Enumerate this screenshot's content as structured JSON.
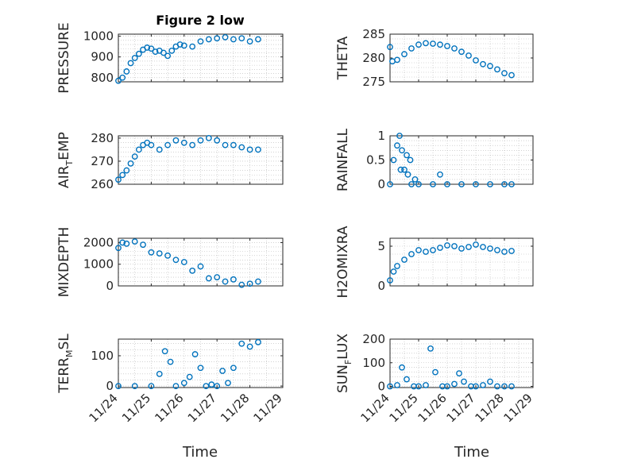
{
  "figure": {
    "title": "Figure 2 low",
    "xlabel": "Time"
  },
  "colors": {
    "marker": "#0072BD",
    "axis": "#262626",
    "grid": "#b8b8b8"
  },
  "chart_data": [
    {
      "id": "pressure",
      "type": "scatter",
      "ylabel_main": "PRESSURE",
      "ylabel_sub": "",
      "ylabel_tail": "",
      "ylim": [
        780,
        1010
      ],
      "yticks": [
        800,
        900,
        1000
      ],
      "yticklabels": [
        "800",
        "900",
        "1000"
      ],
      "xlim": [
        "11/24",
        "11/29"
      ],
      "xticklabels": [],
      "x": [
        "11/24 00:00",
        "11/24 03:00",
        "11/24 06:00",
        "11/24 09:00",
        "11/24 12:00",
        "11/24 15:00",
        "11/24 18:00",
        "11/24 21:00",
        "11/25 00:00",
        "11/25 03:00",
        "11/25 06:00",
        "11/25 09:00",
        "11/25 12:00",
        "11/25 15:00",
        "11/25 18:00",
        "11/25 21:00",
        "11/26 00:00",
        "11/26 06:00",
        "11/26 12:00",
        "11/26 18:00",
        "11/27 00:00",
        "11/27 06:00",
        "11/27 12:00",
        "11/27 18:00",
        "11/28 00:00",
        "11/28 06:00"
      ],
      "y": [
        785,
        800,
        830,
        870,
        895,
        915,
        935,
        945,
        940,
        925,
        930,
        920,
        905,
        930,
        950,
        960,
        955,
        950,
        975,
        985,
        990,
        995,
        985,
        990,
        975,
        985
      ]
    },
    {
      "id": "theta",
      "type": "scatter",
      "ylabel_main": "THETA",
      "ylabel_sub": "",
      "ylabel_tail": "",
      "ylim": [
        275,
        285
      ],
      "yticks": [
        275,
        280,
        285
      ],
      "yticklabels": [
        "275",
        "280",
        "285"
      ],
      "xlim": [
        "11/24",
        "11/29"
      ],
      "xticklabels": [],
      "x": [
        "11/24 00:00",
        "11/24 02:00",
        "11/24 06:00",
        "11/24 12:00",
        "11/24 18:00",
        "11/25 00:00",
        "11/25 06:00",
        "11/25 12:00",
        "11/25 18:00",
        "11/26 00:00",
        "11/26 06:00",
        "11/26 12:00",
        "11/26 18:00",
        "11/27 00:00",
        "11/27 06:00",
        "11/27 12:00",
        "11/27 18:00",
        "11/28 00:00",
        "11/28 06:00"
      ],
      "y": [
        282.3,
        279.3,
        279.6,
        280.8,
        282.0,
        282.8,
        283.1,
        283.0,
        282.8,
        282.5,
        282.0,
        281.3,
        280.5,
        279.5,
        278.7,
        278.3,
        277.6,
        276.8,
        276.4
      ]
    },
    {
      "id": "air_temp",
      "type": "scatter",
      "ylabel_main": "AIR",
      "ylabel_sub": "T",
      "ylabel_tail": "EMP",
      "ylim": [
        260,
        281
      ],
      "yticks": [
        260,
        270,
        280
      ],
      "yticklabels": [
        "260",
        "270",
        "280"
      ],
      "xlim": [
        "11/24",
        "11/29"
      ],
      "xticklabels": [],
      "x": [
        "11/24 00:00",
        "11/24 03:00",
        "11/24 06:00",
        "11/24 09:00",
        "11/24 12:00",
        "11/24 15:00",
        "11/24 18:00",
        "11/24 21:00",
        "11/25 00:00",
        "11/25 06:00",
        "11/25 12:00",
        "11/25 18:00",
        "11/26 00:00",
        "11/26 06:00",
        "11/26 12:00",
        "11/26 18:00",
        "11/27 00:00",
        "11/27 06:00",
        "11/27 12:00",
        "11/27 18:00",
        "11/28 00:00",
        "11/28 06:00"
      ],
      "y": [
        262,
        264,
        266,
        269,
        272,
        275,
        277,
        278,
        277,
        275,
        277,
        279,
        278,
        277,
        279,
        280,
        279,
        277,
        277,
        276,
        275,
        275
      ]
    },
    {
      "id": "rainfall",
      "type": "scatter",
      "ylabel_main": "RAINFALL",
      "ylabel_sub": "",
      "ylabel_tail": "",
      "ylim": [
        0,
        1
      ],
      "yticks": [
        0,
        0.5,
        1
      ],
      "yticklabels": [
        "0",
        "0.5",
        "1"
      ],
      "xlim": [
        "11/24",
        "11/29"
      ],
      "xticklabels": [],
      "x": [
        "11/24 00:00",
        "11/24 03:00",
        "11/24 06:00",
        "11/24 08:00",
        "11/24 09:00",
        "11/24 10:00",
        "11/24 12:00",
        "11/24 14:00",
        "11/24 15:00",
        "11/24 17:00",
        "11/24 18:00",
        "11/24 21:00",
        "11/25 00:00",
        "11/25 12:00",
        "11/25 18:00",
        "11/26 00:00",
        "11/26 12:00",
        "11/27 00:00",
        "11/27 12:00",
        "11/28 00:00",
        "11/28 06:00"
      ],
      "y": [
        0,
        0.5,
        0.8,
        1.0,
        0.3,
        0.7,
        0.3,
        0.6,
        0.2,
        0.5,
        0,
        0.1,
        0,
        0,
        0.2,
        0,
        0,
        0,
        0,
        0,
        0
      ]
    },
    {
      "id": "mixdepth",
      "type": "scatter",
      "ylabel_main": "MIXDEPTH",
      "ylabel_sub": "",
      "ylabel_tail": "",
      "ylim": [
        0,
        2200
      ],
      "yticks": [
        0,
        1000,
        2000
      ],
      "yticklabels": [
        "0",
        "1000",
        "2000"
      ],
      "xlim": [
        "11/24",
        "11/29"
      ],
      "xticklabels": [],
      "x": [
        "11/24 00:00",
        "11/24 03:00",
        "11/24 06:00",
        "11/24 12:00",
        "11/24 18:00",
        "11/25 00:00",
        "11/25 06:00",
        "11/25 12:00",
        "11/25 18:00",
        "11/26 00:00",
        "11/26 06:00",
        "11/26 12:00",
        "11/26 18:00",
        "11/27 00:00",
        "11/27 06:00",
        "11/27 12:00",
        "11/27 18:00",
        "11/28 00:00",
        "11/28 06:00"
      ],
      "y": [
        1750,
        2000,
        1950,
        2050,
        1900,
        1550,
        1500,
        1400,
        1200,
        1100,
        700,
        900,
        350,
        400,
        200,
        300,
        50,
        100,
        200
      ]
    },
    {
      "id": "h2omixra",
      "type": "scatter",
      "ylabel_main": "H2OMIXRA",
      "ylabel_sub": "",
      "ylabel_tail": "",
      "ylim": [
        0,
        6
      ],
      "yticks": [
        0,
        5
      ],
      "yticklabels": [
        "0",
        "5"
      ],
      "xlim": [
        "11/24",
        "11/29"
      ],
      "xticklabels": [],
      "x": [
        "11/24 00:00",
        "11/24 03:00",
        "11/24 06:00",
        "11/24 12:00",
        "11/24 18:00",
        "11/25 00:00",
        "11/25 06:00",
        "11/25 12:00",
        "11/25 18:00",
        "11/26 00:00",
        "11/26 06:00",
        "11/26 12:00",
        "11/26 18:00",
        "11/27 00:00",
        "11/27 06:00",
        "11/27 12:00",
        "11/27 18:00",
        "11/28 00:00",
        "11/28 06:00"
      ],
      "y": [
        0.7,
        1.8,
        2.5,
        3.3,
        4.0,
        4.5,
        4.3,
        4.5,
        4.8,
        5.1,
        5.0,
        4.7,
        4.9,
        5.2,
        4.9,
        4.7,
        4.5,
        4.3,
        4.4
      ]
    },
    {
      "id": "terr_msl",
      "type": "scatter",
      "ylabel_main": "TERR",
      "ylabel_sub": "M",
      "ylabel_tail": "SL",
      "ylim": [
        -5,
        155
      ],
      "yticks": [
        0,
        100
      ],
      "yticklabels": [
        "0",
        "100"
      ],
      "xlim": [
        "11/24",
        "11/29"
      ],
      "xticklabels": [
        "11/24",
        "11/25",
        "11/26",
        "11/27",
        "11/28",
        "11/29"
      ],
      "x": [
        "11/24 00:00",
        "11/24 12:00",
        "11/25 00:00",
        "11/25 06:00",
        "11/25 10:00",
        "11/25 14:00",
        "11/25 18:00",
        "11/26 00:00",
        "11/26 04:00",
        "11/26 08:00",
        "11/26 12:00",
        "11/26 16:00",
        "11/26 20:00",
        "11/27 00:00",
        "11/27 04:00",
        "11/27 08:00",
        "11/27 12:00",
        "11/27 18:00",
        "11/28 00:00",
        "11/28 06:00"
      ],
      "y": [
        0,
        0,
        0,
        40,
        115,
        80,
        0,
        10,
        30,
        105,
        60,
        0,
        5,
        0,
        50,
        10,
        60,
        140,
        130,
        145
      ]
    },
    {
      "id": "sun_flux",
      "type": "scatter",
      "ylabel_main": "SUN",
      "ylabel_sub": "F",
      "ylabel_tail": "LUX",
      "ylim": [
        -5,
        200
      ],
      "yticks": [
        0,
        100,
        200
      ],
      "yticklabels": [
        "0",
        "100",
        "200"
      ],
      "xlim": [
        "11/24",
        "11/29"
      ],
      "xticklabels": [
        "11/24",
        "11/25",
        "11/26",
        "11/27",
        "11/28",
        "11/29"
      ],
      "x": [
        "11/24 00:00",
        "11/24 06:00",
        "11/24 10:00",
        "11/24 14:00",
        "11/24 20:00",
        "11/25 00:00",
        "11/25 06:00",
        "11/25 10:00",
        "11/25 14:00",
        "11/25 20:00",
        "11/26 00:00",
        "11/26 06:00",
        "11/26 10:00",
        "11/26 14:00",
        "11/26 20:00",
        "11/27 00:00",
        "11/27 06:00",
        "11/27 12:00",
        "11/27 18:00",
        "11/28 00:00",
        "11/28 06:00"
      ],
      "y": [
        0,
        5,
        80,
        30,
        0,
        0,
        5,
        160,
        60,
        0,
        0,
        10,
        55,
        20,
        0,
        0,
        5,
        20,
        0,
        0,
        0
      ]
    }
  ]
}
